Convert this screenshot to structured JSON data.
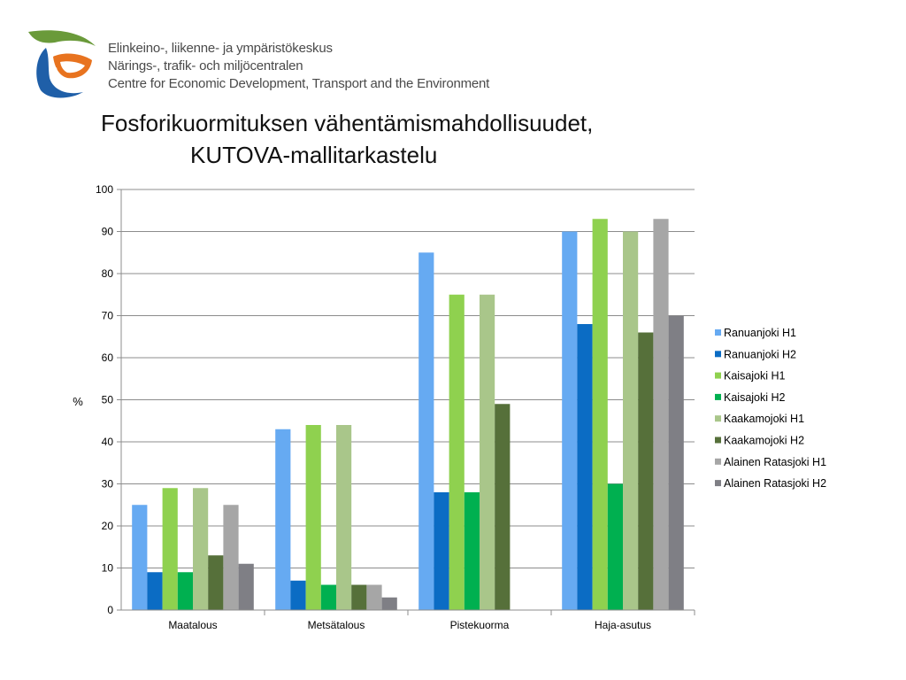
{
  "header": {
    "org_lines": [
      "Elinkeino-, liikenne- ja ympäristökeskus",
      "Närings-, trafik- och miljöcentralen",
      "Centre for Economic Development, Transport and the Environment"
    ],
    "logo_icon": "ely-centre-logo-icon",
    "logo_colors": [
      "#6a9a3a",
      "#e8731f",
      "#1f5fa8"
    ]
  },
  "chart_data": {
    "type": "bar",
    "title_lines": [
      "Fosforikuormituksen vähentämismahdollisuudet,",
      "KUTOVA-mallitarkastelu"
    ],
    "xlabel": "",
    "ylabel": "%",
    "ylim": [
      0,
      100
    ],
    "yticks": [
      0,
      10,
      20,
      30,
      40,
      50,
      60,
      70,
      80,
      90,
      100
    ],
    "grid": true,
    "legend_position": "right",
    "categories": [
      "Maatalous",
      "Metsätalous",
      "Pistekuorma",
      "Haja-asutus"
    ],
    "series": [
      {
        "name": "Ranuanjoki H1",
        "color": "#66aaf2",
        "values": [
          25,
          43,
          85,
          90
        ]
      },
      {
        "name": "Ranuanjoki H2",
        "color": "#0b6cc4",
        "values": [
          9,
          7,
          28,
          68
        ]
      },
      {
        "name": "Kaisajoki H1",
        "color": "#8fd14f",
        "values": [
          29,
          44,
          75,
          93
        ]
      },
      {
        "name": "Kaisajoki H2",
        "color": "#00b050",
        "values": [
          9,
          6,
          28,
          30
        ]
      },
      {
        "name": "Kaakamojoki H1",
        "color": "#a9c68a",
        "values": [
          29,
          44,
          75,
          90
        ]
      },
      {
        "name": "Kaakamojoki H2",
        "color": "#56703a",
        "values": [
          13,
          6,
          49,
          66
        ]
      },
      {
        "name": "Alainen Ratasjoki H1",
        "color": "#a6a6a6",
        "values": [
          25,
          6,
          0,
          93
        ]
      },
      {
        "name": "Alainen Ratasjoki H2",
        "color": "#7f7f85",
        "values": [
          11,
          3,
          0,
          70
        ]
      }
    ]
  }
}
